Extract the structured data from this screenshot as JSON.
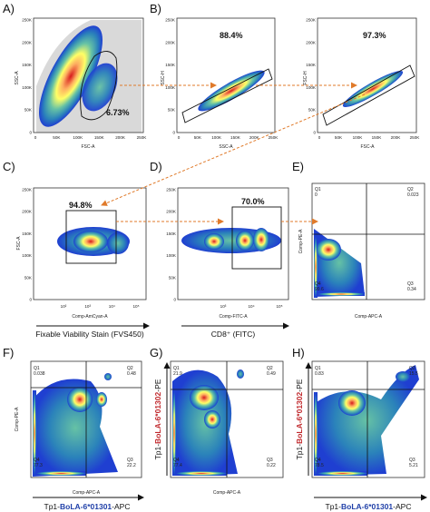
{
  "panels": {
    "A": {
      "label": "A)",
      "ylabel": "SSC-A",
      "xlabel": "FSC-A",
      "gate_pct": "6.73%",
      "yticks": [
        "250K",
        "200K",
        "150K",
        "100K",
        "50K",
        "0"
      ],
      "xticks": [
        "0",
        "50K",
        "100K",
        "150K",
        "200K",
        "250K"
      ]
    },
    "B": {
      "label": "B)",
      "ylabel": "SSC-H",
      "xlabel": "SSC-A",
      "gate_pct": "88.4%",
      "yticks": [
        "250K",
        "200K",
        "150K",
        "100K",
        "50K",
        "0"
      ],
      "xticks": [
        "0",
        "50K",
        "100K",
        "150K",
        "200K",
        "250K"
      ]
    },
    "B2": {
      "ylabel": "FSC-H",
      "xlabel": "FSC-A",
      "gate_pct": "97.3%",
      "yticks": [
        "250K",
        "200K",
        "150K",
        "100K",
        "50K",
        "0"
      ],
      "xticks": [
        "0",
        "50K",
        "100K",
        "150K",
        "200K",
        "250K"
      ]
    },
    "C": {
      "label": "C)",
      "ylabel": "FSC-A",
      "xlabel": "Comp-AmCyan-A",
      "gate_pct": "94.8%",
      "yticks": [
        "250K",
        "200K",
        "150K",
        "100K",
        "50K",
        "0"
      ],
      "xticks": [
        "10²",
        "10³",
        "10⁴",
        "10⁵"
      ],
      "marker": "Fixable Viability Stain (FVS450)"
    },
    "D": {
      "label": "D)",
      "xlabel": "Comp-FITC-A",
      "gate_pct": "70.0%",
      "yticks": [
        "250K",
        "200K",
        "150K",
        "100K",
        "50K",
        "0"
      ],
      "xticks": [
        "10³",
        "10⁴",
        "10⁵"
      ],
      "marker": "CD8⁺ (FITC)"
    },
    "E": {
      "label": "E)",
      "ylabel": "Comp-PE-A",
      "xlabel": "Comp-APC-A",
      "q1_label": "Q1",
      "q1": "0",
      "q2_label": "Q2",
      "q2": "0.023",
      "q3_label": "Q3",
      "q3": "0.34",
      "q4_label": "Q4",
      "q4": "99.6"
    },
    "F": {
      "label": "F)",
      "ylabel": "Comp-PE-A",
      "xlabel": "Comp-APC-A",
      "q1_label": "Q1",
      "q1": "0.038",
      "q2_label": "Q2",
      "q2": "0.48",
      "q3_label": "Q3",
      "q3": "22.2",
      "q4_label": "Q4",
      "q4": "77.3",
      "marker_prefix": "Tp1-",
      "marker_name": "BoLA-6*01301",
      "marker_suffix": "-APC"
    },
    "G": {
      "label": "G)",
      "xlabel": "Comp-APC-A",
      "q1_label": "Q1",
      "q1": "21.9",
      "q2_label": "Q2",
      "q2": "0.49",
      "q3_label": "Q3",
      "q3": "0.22",
      "q4_label": "Q4",
      "q4": "77.4",
      "y_marker_prefix": "Tp1-",
      "y_marker_name": "BoLA-6*01302",
      "y_marker_suffix": "-PE"
    },
    "H": {
      "label": "H)",
      "q1_label": "Q1",
      "q1": "0.83",
      "q2_label": "Q2",
      "q2": "15.5",
      "q3_label": "Q3",
      "q3": "5.21",
      "q4_label": "Q4",
      "q4": "78.5",
      "marker_prefix": "Tp1-",
      "marker_name": "BoLA-6*01301",
      "marker_suffix": "-APC",
      "y_marker_prefix": "Tp1-",
      "y_marker_name": "BoLA-6*01302",
      "y_marker_suffix": "-PE"
    }
  },
  "colors": {
    "arrow": "#e07a2a",
    "high": "#d7191c",
    "mid": "#ffd92f",
    "low": "#2b83ba",
    "background_density": "#1f3fd1"
  }
}
